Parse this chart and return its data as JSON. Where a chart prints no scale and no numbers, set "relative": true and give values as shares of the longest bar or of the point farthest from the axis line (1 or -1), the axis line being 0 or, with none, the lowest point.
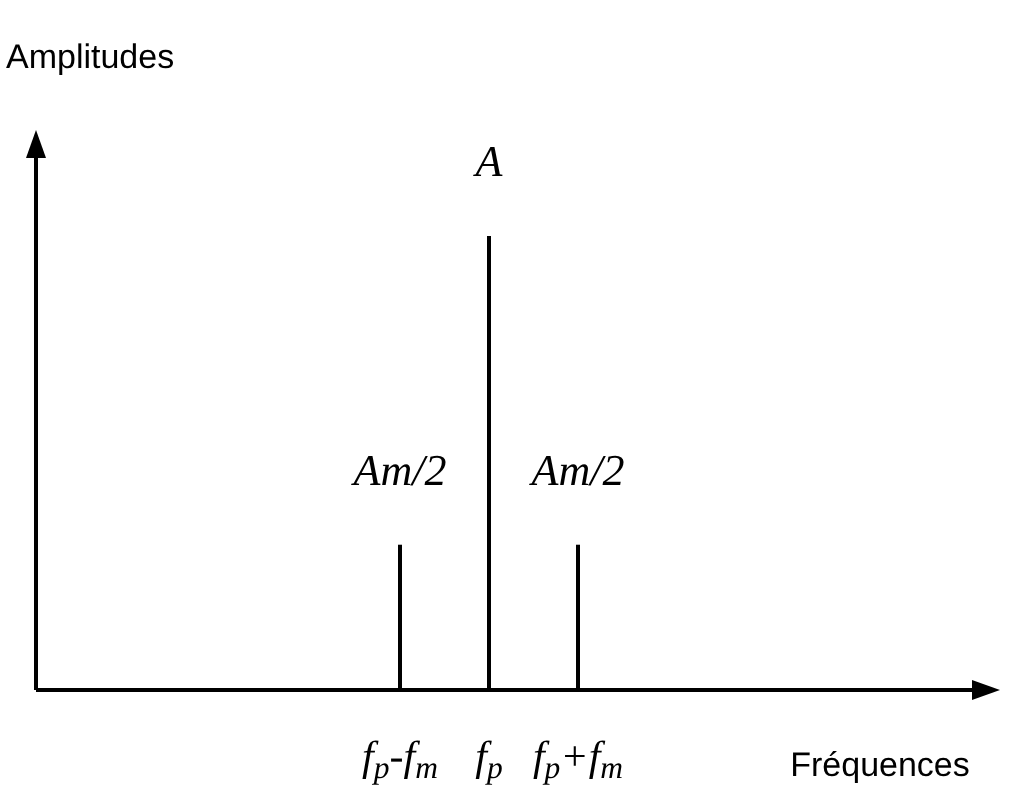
{
  "chart_data": {
    "type": "bar",
    "relative": true,
    "xlabel": "Fréquences",
    "categories": [
      "f$_{p}$-f$_{m}$",
      "f$_{p}$",
      "f$_{p}$+f$_{m}$"
    ],
    "values": [
      0.32,
      1,
      0.32
    ],
    "annotations": [
      "Amplitudes",
      {
        "text": "Am/2",
        "x": "f$_{p}$-f$_{m}$",
        "y": 0.32
      },
      {
        "text": "A",
        "x": "f$_{p}$",
        "y": 1
      },
      {
        "text": "Am/2",
        "x": "f$_{p}$+f$_{m}$",
        "y": 0.32
      }
    ],
    "color": "#000000"
  }
}
